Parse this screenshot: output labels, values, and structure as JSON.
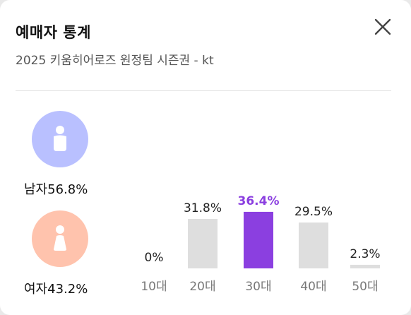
{
  "header": {
    "title": "예매자 통계",
    "subtitle": "2025 키움히어로즈 원정팀 시즌권 - kt",
    "close_icon": "close-icon"
  },
  "gender": {
    "male": {
      "label": "남자",
      "percent": "56.8%",
      "icon": "male-person-icon",
      "color": "#b9c0ff"
    },
    "female": {
      "label": "여자",
      "percent": "43.2%",
      "icon": "female-person-icon",
      "color": "#ffc3ad"
    }
  },
  "chart_data": {
    "type": "bar",
    "categories": [
      "10대",
      "20대",
      "30대",
      "40대",
      "50대"
    ],
    "values": [
      0,
      31.8,
      36.4,
      29.5,
      2.3
    ],
    "value_labels": [
      "0%",
      "31.8%",
      "36.4%",
      "29.5%",
      "2.3%"
    ],
    "highlight_index": 2,
    "colors": {
      "bar": "#dedede",
      "highlight": "#8b3fe0",
      "label": "#222222",
      "axis_label": "#777777"
    }
  }
}
